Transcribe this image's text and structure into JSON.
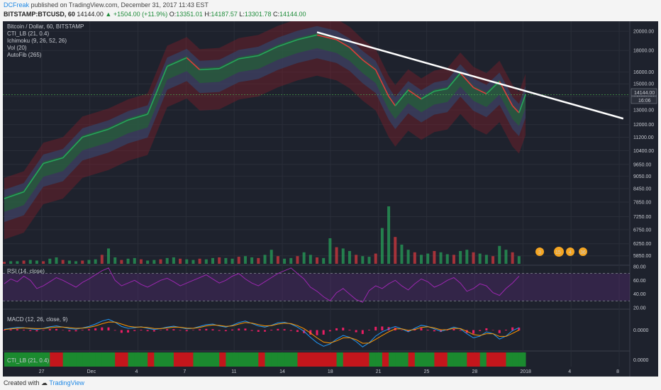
{
  "header": {
    "author": "DCFreak",
    "published_text": "published on TradingView.com, December 31, 2017 11:43 EST",
    "symbol_text": "BITSTAMP:BTCUSD, 60",
    "last": "14144.00",
    "change_text": "▲ +1504.00 (+11.9%)",
    "open_label": "O:",
    "open": "13351.01",
    "high_label": "H:",
    "high": "14187.57",
    "low_label": "L:",
    "low": "13301.78",
    "close_label": "C:",
    "close": "14144.00"
  },
  "footer": {
    "created_with": "Created with",
    "brand": "TradingView"
  },
  "main_legend": [
    "Bitcoin / Dollar, 60, BITSTAMP",
    "CTI_LB (21, 0.4)",
    "Ichimoku (9, 26, 52, 26)",
    "Vol (20)",
    "AutoFib (265)"
  ],
  "rsi_legend": "RSI (14, close)",
  "macd_legend": "MACD (12, 26, close, 9)",
  "cti_legend": "CTI_LB (21, 0.4)",
  "price_badge": "14144.00",
  "time_badge": "16:06",
  "event_badges": [
    "3",
    "15",
    "4",
    "36"
  ],
  "colors": {
    "background": "#1e222d",
    "up": "#26a65b",
    "down": "#e0393e",
    "trendline": "#ffffff",
    "rsi": "#9c27b0",
    "macd": "#2196f3",
    "signal": "#ff9800",
    "hist": "#e91e63",
    "cti_green": "#1b8a2f",
    "cti_red": "#c4161c",
    "text": "#c8cbd2"
  },
  "chart_data": [
    {
      "type": "line",
      "name": "Bitcoin / Dollar, 60, BITSTAMP",
      "x_ticks": [
        "27",
        "Dec",
        "4",
        "7",
        "11",
        "14",
        "18",
        "21",
        "25",
        "28",
        "2018",
        "4",
        "8"
      ],
      "y_ticks": [
        20000,
        18000,
        16000,
        15000,
        14000,
        13000,
        12000,
        11200,
        10400,
        9650,
        9050,
        8450,
        7850,
        7250,
        6750,
        6250,
        5850
      ],
      "y_scale": "log",
      "price_points": [
        [
          0,
          8000
        ],
        [
          3,
          8300
        ],
        [
          6,
          9700
        ],
        [
          9,
          10000
        ],
        [
          12,
          11200
        ],
        [
          16,
          11700
        ],
        [
          19,
          12300
        ],
        [
          22,
          12700
        ],
        [
          25,
          16500
        ],
        [
          28,
          17300
        ],
        [
          30,
          16200
        ],
        [
          33,
          16300
        ],
        [
          36,
          17200
        ],
        [
          39,
          17500
        ],
        [
          42,
          18400
        ],
        [
          45,
          19100
        ],
        [
          48,
          19600
        ],
        [
          51,
          19100
        ],
        [
          53,
          18300
        ],
        [
          55,
          17100
        ],
        [
          57,
          16200
        ],
        [
          59,
          14000
        ],
        [
          60,
          13300
        ],
        [
          62,
          14500
        ],
        [
          64,
          13800
        ],
        [
          66,
          14400
        ],
        [
          68,
          14600
        ],
        [
          70,
          15900
        ],
        [
          72,
          14700
        ],
        [
          74,
          14200
        ],
        [
          76,
          15200
        ],
        [
          78,
          13300
        ],
        [
          79,
          12800
        ],
        [
          80,
          14144
        ]
      ],
      "trendline": [
        [
          48,
          19900
        ],
        [
          95,
          12400
        ]
      ],
      "last_price": 14144.0
    },
    {
      "type": "bar",
      "name": "Vol (20)",
      "values": [
        3,
        4,
        4,
        5,
        6,
        5,
        4,
        8,
        10,
        6,
        5,
        4,
        5,
        6,
        7,
        14,
        24,
        10,
        6,
        8,
        9,
        7,
        5,
        6,
        7,
        9,
        10,
        8,
        7,
        6,
        8,
        7,
        9,
        10,
        9,
        8,
        11,
        12,
        10,
        9,
        14,
        22,
        12,
        8,
        9,
        12,
        18,
        14,
        10,
        9,
        40,
        26,
        24,
        20,
        14,
        12,
        11,
        16,
        56,
        90,
        42,
        30,
        22,
        18,
        14,
        16,
        20,
        18,
        15,
        14,
        20,
        22,
        18,
        16,
        14,
        12,
        28,
        22,
        18,
        12
      ]
    },
    {
      "type": "line",
      "name": "RSI (14, close)",
      "y_ticks": [
        80.0,
        60.0,
        40.0,
        20.0
      ],
      "ylim": [
        20,
        80
      ],
      "bands": [
        30,
        70
      ],
      "values": [
        55,
        62,
        58,
        66,
        60,
        48,
        52,
        58,
        64,
        60,
        55,
        50,
        57,
        62,
        68,
        74,
        78,
        60,
        52,
        56,
        60,
        54,
        50,
        55,
        60,
        63,
        58,
        52,
        56,
        60,
        64,
        68,
        62,
        56,
        60,
        66,
        70,
        62,
        56,
        52,
        58,
        64,
        70,
        74,
        78,
        70,
        62,
        50,
        44,
        36,
        30,
        42,
        48,
        40,
        32,
        28,
        45,
        52,
        48,
        55,
        60,
        52,
        46,
        55,
        62,
        58,
        50,
        54,
        60,
        64,
        56,
        44,
        48,
        55,
        52,
        42,
        38,
        48,
        56,
        66
      ]
    },
    {
      "type": "line",
      "name": "MACD (12, 26, close, 9)",
      "y_ticks": [
        0.0
      ],
      "macd": [
        30,
        60,
        90,
        80,
        40,
        20,
        60,
        110,
        140,
        100,
        50,
        30,
        70,
        120,
        200,
        300,
        360,
        260,
        120,
        60,
        80,
        110,
        60,
        20,
        50,
        100,
        130,
        90,
        40,
        60,
        120,
        180,
        200,
        140,
        100,
        160,
        250,
        300,
        220,
        140,
        100,
        160,
        240,
        260,
        200,
        100,
        -40,
        -240,
        -420,
        -540,
        -460,
        -300,
        -180,
        -240,
        -380,
        -560,
        -420,
        -200,
        -60,
        40,
        120,
        40,
        -60,
        60,
        160,
        120,
        40,
        -40,
        20,
        100,
        40,
        -120,
        -260,
        -200,
        -60,
        -120,
        -300,
        -200,
        -20,
        80
      ],
      "signal": [
        20,
        40,
        60,
        70,
        60,
        50,
        55,
        75,
        100,
        100,
        80,
        60,
        65,
        90,
        140,
        210,
        270,
        265,
        200,
        130,
        100,
        100,
        85,
        55,
        50,
        70,
        100,
        95,
        65,
        60,
        90,
        140,
        170,
        155,
        125,
        140,
        200,
        250,
        235,
        185,
        140,
        150,
        200,
        230,
        215,
        150,
        50,
        -100,
        -260,
        -400,
        -430,
        -360,
        -260,
        -250,
        -320,
        -440,
        -430,
        -310,
        -180,
        -60,
        40,
        40,
        -10,
        20,
        90,
        110,
        70,
        10,
        15,
        60,
        50,
        -40,
        -150,
        -180,
        -120,
        -120,
        -210,
        -210,
        -110,
        0
      ]
    },
    {
      "type": "heatmap",
      "name": "CTI_LB (21, 0.4)",
      "y_ticks": [
        0.0
      ],
      "values": [
        1,
        1,
        1,
        1,
        1,
        1,
        1,
        -1,
        -1,
        1,
        1,
        1,
        1,
        1,
        1,
        1,
        1,
        -1,
        -1,
        1,
        1,
        1,
        -1,
        1,
        1,
        1,
        -1,
        -1,
        -1,
        1,
        1,
        1,
        1,
        -1,
        1,
        1,
        1,
        1,
        1,
        -1,
        1,
        1,
        1,
        1,
        1,
        -1,
        -1,
        -1,
        -1,
        -1,
        -1,
        1,
        -1,
        -1,
        -1,
        -1,
        1,
        1,
        -1,
        1,
        1,
        1,
        -1,
        1,
        1,
        1,
        -1,
        -1,
        1,
        1,
        1,
        -1,
        -1,
        1,
        -1,
        -1,
        -1,
        1,
        1,
        1
      ]
    }
  ]
}
